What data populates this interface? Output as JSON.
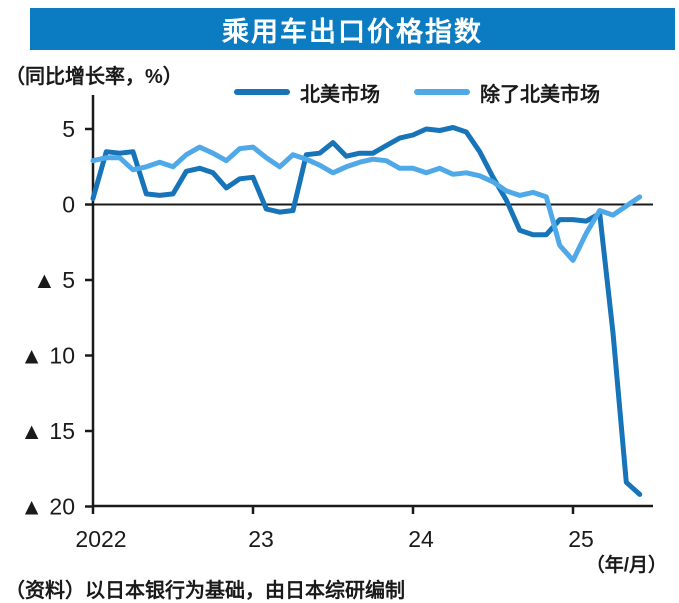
{
  "chart_data": {
    "type": "line",
    "title": "乘用车出口价格指数",
    "y_axis_note": "（同比增长率，%）",
    "x_axis_note": "（年/月）",
    "source_note": "（资料）以日本银行为基础，由日本综研编制",
    "frequency": "monthly",
    "x_start": "2022-01",
    "x_end": "2025-06",
    "ylim": [
      -20,
      6.5
    ],
    "zero_line": true,
    "grid": false,
    "legend_position": "top",
    "y_axis": {
      "ticks": [
        {
          "value": 5,
          "label": "5"
        },
        {
          "value": 0,
          "label": "0"
        },
        {
          "value": -5,
          "label": "▲ 5"
        },
        {
          "value": -10,
          "label": "▲ 10"
        },
        {
          "value": -15,
          "label": "▲ 15"
        },
        {
          "value": -20,
          "label": "▲ 20"
        }
      ]
    },
    "x_axis": {
      "ticks": [
        {
          "month_index": 0,
          "label": "2022"
        },
        {
          "month_index": 12,
          "label": "23"
        },
        {
          "month_index": 24,
          "label": "24"
        },
        {
          "month_index": 36,
          "label": "25"
        }
      ]
    },
    "series": [
      {
        "name": "北美市场",
        "color": "#1774b8",
        "values": [
          0.4,
          3.5,
          3.4,
          3.5,
          0.7,
          0.6,
          0.7,
          2.2,
          2.4,
          2.1,
          1.1,
          1.7,
          1.8,
          -0.3,
          -0.5,
          -0.4,
          3.3,
          3.4,
          4.1,
          3.2,
          3.4,
          3.4,
          3.9,
          4.4,
          4.6,
          5.0,
          4.9,
          5.1,
          4.8,
          3.5,
          1.8,
          0.3,
          -1.7,
          -2.0,
          -2.0,
          -1.0,
          -1.0,
          -1.1,
          -0.6,
          -8.5,
          -18.4,
          -19.2
        ]
      },
      {
        "name": "除了北美市场",
        "color": "#4fa9e8",
        "values": [
          2.9,
          3.1,
          3.1,
          2.3,
          2.5,
          2.8,
          2.5,
          3.3,
          3.8,
          3.4,
          2.9,
          3.7,
          3.8,
          3.1,
          2.5,
          3.3,
          3.0,
          2.6,
          2.1,
          2.5,
          2.8,
          3.0,
          2.9,
          2.4,
          2.4,
          2.1,
          2.4,
          2.0,
          2.1,
          1.9,
          1.5,
          0.9,
          0.6,
          0.8,
          0.5,
          -2.7,
          -3.7,
          -1.9,
          -0.4,
          -0.7,
          -0.1,
          0.5
        ]
      }
    ]
  },
  "colors": {
    "header_bg": "#0b7cc1",
    "header_text": "#ffffff",
    "axis": "#1a1a1a",
    "background": "#ffffff"
  }
}
